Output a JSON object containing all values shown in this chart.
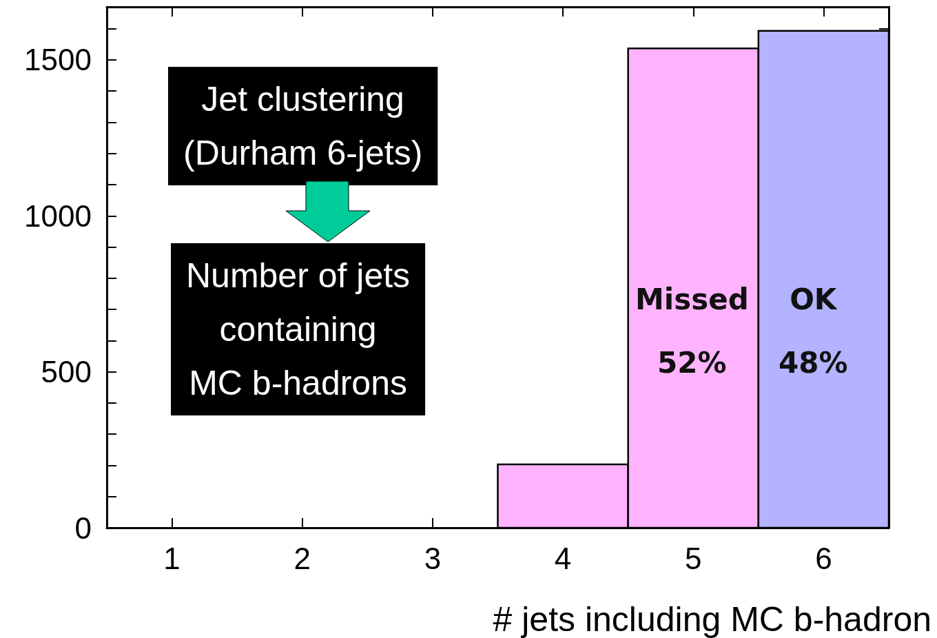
{
  "chart_data": {
    "type": "histogram",
    "xlabel": "# jets including MC b-hadron",
    "bins": [
      0.5,
      1.5,
      2.5,
      3.5,
      4.5,
      5.5,
      6.5
    ],
    "values": [
      0,
      0,
      0,
      203,
      1537,
      1593
    ],
    "colors": [
      "#ffb3ff",
      "#ffb3ff",
      "#ffb3ff",
      "#ffb3ff",
      "#ffb3ff",
      "#b3b3ff"
    ],
    "xlim": [
      0.5,
      6.5
    ],
    "xticks": [
      1,
      2,
      3,
      4,
      5,
      6
    ],
    "ylim": [
      0,
      1670
    ],
    "yticks": [
      0,
      {
        "value": 100,
        "label": null
      },
      {
        "value": 200,
        "label": null
      },
      {
        "value": 300,
        "label": null
      },
      {
        "value": 400,
        "label": null
      },
      500,
      {
        "value": 600,
        "label": null
      },
      {
        "value": 700,
        "label": null
      },
      {
        "value": 800,
        "label": null
      },
      {
        "value": 900,
        "label": null
      },
      1000,
      {
        "value": 1100,
        "label": null
      },
      {
        "value": 1200,
        "label": null
      },
      {
        "value": 1300,
        "label": null
      },
      {
        "value": 1400,
        "label": null
      },
      1500,
      {
        "value": 1600,
        "label": null
      }
    ],
    "grid": false,
    "annotations": [
      "Jet clustering\n(Durham 6-jets)",
      "Number of jets\ncontaining\nMC b-hadrons",
      "Missed\n52%",
      "OK\n48%"
    ]
  }
}
